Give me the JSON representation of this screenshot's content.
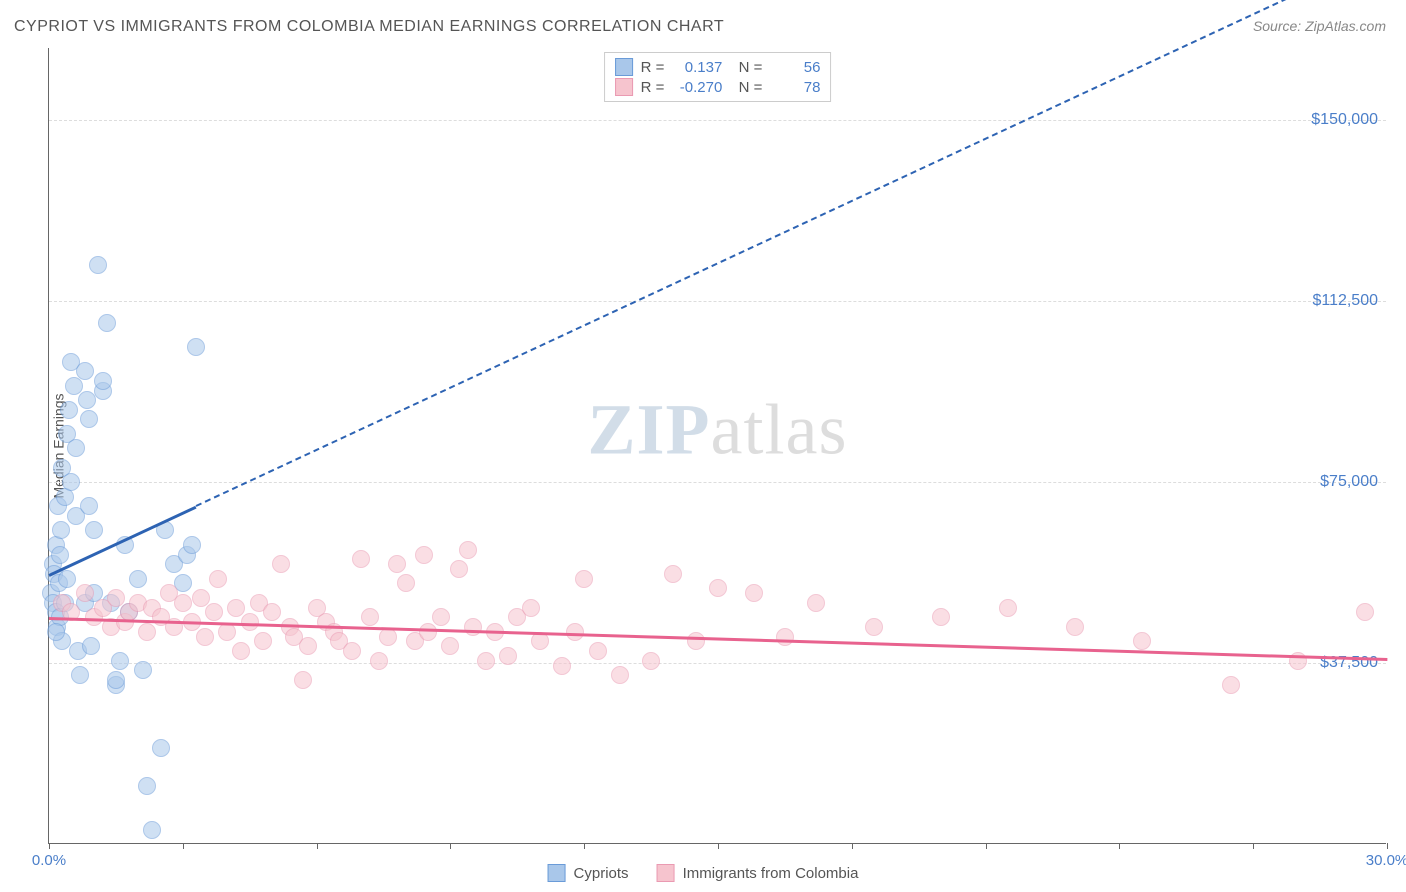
{
  "title": "CYPRIOT VS IMMIGRANTS FROM COLOMBIA MEDIAN EARNINGS CORRELATION CHART",
  "source_label": "Source: ZipAtlas.com",
  "ylabel": "Median Earnings",
  "watermark": {
    "a": "ZIP",
    "b": "atlas"
  },
  "chart": {
    "type": "scatter",
    "xlim": [
      0,
      30
    ],
    "ylim": [
      0,
      165000
    ],
    "x_unit": "%",
    "y_unit": "$",
    "y_gridlines": [
      37500,
      75000,
      112500,
      150000
    ],
    "y_tick_labels": [
      "$37,500",
      "$75,000",
      "$112,500",
      "$150,000"
    ],
    "x_ticks": [
      0,
      3,
      6,
      9,
      12,
      15,
      18,
      21,
      24,
      27,
      30
    ],
    "x_tick_labels_shown": {
      "0": "0.0%",
      "30": "30.0%"
    },
    "grid_color": "#dddddd",
    "axis_color": "#666666",
    "tick_label_color": "#4a7ec9",
    "background_color": "#ffffff",
    "point_radius": 9,
    "point_opacity": 0.55
  },
  "series": [
    {
      "name": "Cypriots",
      "color_fill": "#a9c7ea",
      "color_stroke": "#6a9bd8",
      "trend_color": "#2d63b3",
      "trend_solid_xmax": 3.3,
      "trend": {
        "x0": 0,
        "y0": 56000,
        "x1": 30,
        "y1": 185000
      },
      "stats": {
        "R": "0.137",
        "N": "56"
      },
      "points": [
        [
          0.05,
          52000
        ],
        [
          0.1,
          58000
        ],
        [
          0.1,
          50000
        ],
        [
          0.12,
          56000
        ],
        [
          0.15,
          48000
        ],
        [
          0.15,
          62000
        ],
        [
          0.18,
          45000
        ],
        [
          0.2,
          70000
        ],
        [
          0.22,
          54000
        ],
        [
          0.25,
          60000
        ],
        [
          0.25,
          47000
        ],
        [
          0.28,
          65000
        ],
        [
          0.3,
          42000
        ],
        [
          0.3,
          78000
        ],
        [
          0.35,
          72000
        ],
        [
          0.4,
          55000
        ],
        [
          0.4,
          85000
        ],
        [
          0.45,
          90000
        ],
        [
          0.5,
          75000
        ],
        [
          0.5,
          100000
        ],
        [
          0.55,
          95000
        ],
        [
          0.6,
          68000
        ],
        [
          0.6,
          82000
        ],
        [
          0.65,
          40000
        ],
        [
          0.7,
          35000
        ],
        [
          0.8,
          98000
        ],
        [
          0.8,
          50000
        ],
        [
          0.85,
          92000
        ],
        [
          0.9,
          88000
        ],
        [
          0.95,
          41000
        ],
        [
          1.0,
          65000
        ],
        [
          1.0,
          52000
        ],
        [
          1.1,
          120000
        ],
        [
          1.2,
          94000
        ],
        [
          1.2,
          96000
        ],
        [
          1.3,
          108000
        ],
        [
          1.4,
          50000
        ],
        [
          1.5,
          33000
        ],
        [
          1.5,
          34000
        ],
        [
          1.6,
          38000
        ],
        [
          1.7,
          62000
        ],
        [
          1.8,
          48000
        ],
        [
          2.0,
          55000
        ],
        [
          2.1,
          36000
        ],
        [
          2.2,
          12000
        ],
        [
          2.3,
          3000
        ],
        [
          2.5,
          20000
        ],
        [
          2.6,
          65000
        ],
        [
          2.8,
          58000
        ],
        [
          3.0,
          54000
        ],
        [
          3.1,
          60000
        ],
        [
          3.2,
          62000
        ],
        [
          3.3,
          103000
        ],
        [
          0.15,
          44000
        ],
        [
          0.35,
          50000
        ],
        [
          0.9,
          70000
        ]
      ]
    },
    {
      "name": "Immigrants from Colombia",
      "color_fill": "#f6c4ce",
      "color_stroke": "#ea9ab2",
      "trend_color": "#e8628e",
      "trend_solid_xmax": 30,
      "trend": {
        "x0": 0,
        "y0": 47000,
        "x1": 30,
        "y1": 38500
      },
      "stats": {
        "R": "-0.270",
        "N": "78"
      },
      "points": [
        [
          0.3,
          50000
        ],
        [
          0.5,
          48000
        ],
        [
          0.8,
          52000
        ],
        [
          1.0,
          47000
        ],
        [
          1.2,
          49000
        ],
        [
          1.4,
          45000
        ],
        [
          1.5,
          51000
        ],
        [
          1.7,
          46000
        ],
        [
          1.8,
          48000
        ],
        [
          2.0,
          50000
        ],
        [
          2.2,
          44000
        ],
        [
          2.3,
          49000
        ],
        [
          2.5,
          47000
        ],
        [
          2.7,
          52000
        ],
        [
          2.8,
          45000
        ],
        [
          3.0,
          50000
        ],
        [
          3.2,
          46000
        ],
        [
          3.4,
          51000
        ],
        [
          3.5,
          43000
        ],
        [
          3.7,
          48000
        ],
        [
          3.8,
          55000
        ],
        [
          4.0,
          44000
        ],
        [
          4.2,
          49000
        ],
        [
          4.3,
          40000
        ],
        [
          4.5,
          46000
        ],
        [
          4.7,
          50000
        ],
        [
          4.8,
          42000
        ],
        [
          5.0,
          48000
        ],
        [
          5.2,
          58000
        ],
        [
          5.4,
          45000
        ],
        [
          5.5,
          43000
        ],
        [
          5.7,
          34000
        ],
        [
          5.8,
          41000
        ],
        [
          6.0,
          49000
        ],
        [
          6.2,
          46000
        ],
        [
          6.4,
          44000
        ],
        [
          6.5,
          42000
        ],
        [
          6.8,
          40000
        ],
        [
          7.0,
          59000
        ],
        [
          7.2,
          47000
        ],
        [
          7.4,
          38000
        ],
        [
          7.6,
          43000
        ],
        [
          7.8,
          58000
        ],
        [
          8.0,
          54000
        ],
        [
          8.2,
          42000
        ],
        [
          8.4,
          60000
        ],
        [
          8.5,
          44000
        ],
        [
          8.8,
          47000
        ],
        [
          9.0,
          41000
        ],
        [
          9.2,
          57000
        ],
        [
          9.4,
          61000
        ],
        [
          9.5,
          45000
        ],
        [
          9.8,
          38000
        ],
        [
          10.0,
          44000
        ],
        [
          10.3,
          39000
        ],
        [
          10.5,
          47000
        ],
        [
          10.8,
          49000
        ],
        [
          11.0,
          42000
        ],
        [
          11.5,
          37000
        ],
        [
          11.8,
          44000
        ],
        [
          12.0,
          55000
        ],
        [
          12.3,
          40000
        ],
        [
          12.8,
          35000
        ],
        [
          13.5,
          38000
        ],
        [
          14.0,
          56000
        ],
        [
          14.5,
          42000
        ],
        [
          15.0,
          53000
        ],
        [
          15.8,
          52000
        ],
        [
          16.5,
          43000
        ],
        [
          17.2,
          50000
        ],
        [
          18.5,
          45000
        ],
        [
          20.0,
          47000
        ],
        [
          21.5,
          49000
        ],
        [
          23.0,
          45000
        ],
        [
          24.5,
          42000
        ],
        [
          26.5,
          33000
        ],
        [
          28.0,
          38000
        ],
        [
          29.5,
          48000
        ]
      ]
    }
  ],
  "bottom_legend": [
    {
      "label": "Cypriots",
      "fill": "#a9c7ea",
      "stroke": "#6a9bd8"
    },
    {
      "label": "Immigrants from Colombia",
      "fill": "#f6c4ce",
      "stroke": "#ea9ab2"
    }
  ]
}
